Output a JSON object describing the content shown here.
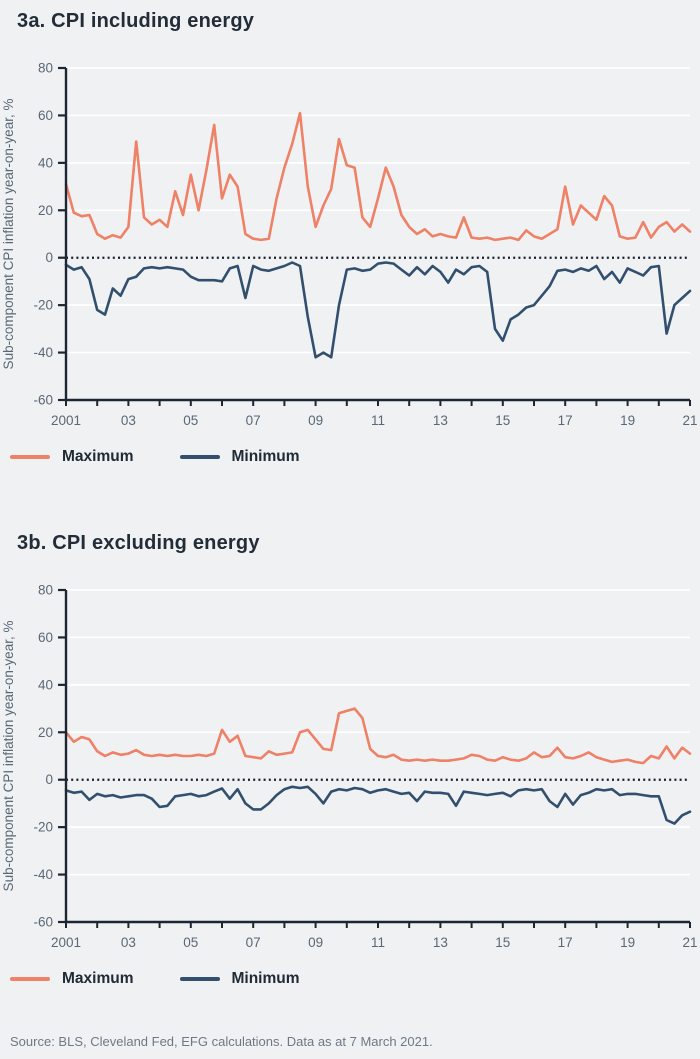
{
  "source": "Source: BLS, Cleveland Fed, EFG calculations. Data as at 7 March 2021.",
  "colors": {
    "maximum": "#ee8166",
    "minimum": "#32506e",
    "background": "#f0f1f3",
    "grid": "#ffffff",
    "axis": "#1c2733",
    "zero_line": "#15202b",
    "tick_label": "#5a6874",
    "title_text": "#232d38",
    "source_text": "#6f7984"
  },
  "chart_data": [
    {
      "type": "line",
      "title": "3a. CPI including energy",
      "ylabel": "Sub-component CPI inflation year-on-year, %",
      "xlim": [
        2001,
        2021
      ],
      "ylim": [
        -60,
        80
      ],
      "yticks": [
        80,
        60,
        40,
        20,
        0,
        -20,
        -40,
        -60
      ],
      "xticks": [
        {
          "v": 2001,
          "label": "2001"
        },
        {
          "v": 2003,
          "label": "03"
        },
        {
          "v": 2005,
          "label": "05"
        },
        {
          "v": 2007,
          "label": "07"
        },
        {
          "v": 2009,
          "label": "09"
        },
        {
          "v": 2011,
          "label": "11"
        },
        {
          "v": 2013,
          "label": "13"
        },
        {
          "v": 2015,
          "label": "15"
        },
        {
          "v": 2017,
          "label": "17"
        },
        {
          "v": 2019,
          "label": "19"
        },
        {
          "v": 2021,
          "label": "21"
        }
      ],
      "x_start": 2001,
      "x_step": 0.25,
      "grid": "horizontal-white",
      "zero_line_dotted": true,
      "legend_position": "below",
      "series": [
        {
          "name": "Maximum",
          "color": "#ee8166",
          "values": [
            31,
            19,
            17.5,
            18,
            10,
            8,
            9.5,
            8.5,
            13,
            49,
            17,
            14,
            16,
            13,
            28,
            18,
            35,
            20,
            37,
            56,
            25,
            35,
            30,
            10,
            8,
            7.5,
            8,
            25,
            38,
            48,
            61,
            30,
            13,
            22,
            29,
            50,
            39,
            38,
            17,
            13,
            25,
            38,
            30,
            18,
            13,
            10,
            12,
            9,
            10,
            9,
            8.5,
            17,
            8.5,
            8,
            8.5,
            7.5,
            8,
            8.5,
            7.5,
            11.5,
            9,
            8,
            10,
            12,
            30,
            14,
            22,
            19,
            16,
            26,
            22,
            9,
            8,
            8.5,
            15,
            8.5,
            13,
            15,
            11,
            14,
            11
          ]
        },
        {
          "name": "Minimum",
          "color": "#32506e",
          "values": [
            -3,
            -5,
            -4,
            -9,
            -22,
            -24,
            -13,
            -16,
            -9,
            -8,
            -4.5,
            -4,
            -4.5,
            -4,
            -4.5,
            -5,
            -8,
            -9.5,
            -9.5,
            -9.5,
            -10,
            -4.5,
            -3.5,
            -17,
            -3.5,
            -5,
            -5.5,
            -4.5,
            -3.5,
            -2,
            -3.5,
            -25,
            -42,
            -40,
            -42,
            -20,
            -5,
            -4.5,
            -5.5,
            -5,
            -2.5,
            -2,
            -2.5,
            -5,
            -7.5,
            -4,
            -7,
            -3.5,
            -6,
            -10.5,
            -5,
            -7,
            -4,
            -3.5,
            -6,
            -30,
            -35,
            -26,
            -24,
            -21,
            -20,
            -16,
            -12,
            -5.5,
            -5,
            -6,
            -4.5,
            -5.5,
            -3.5,
            -9,
            -6,
            -10.5,
            -4.5,
            -6,
            -7.5,
            -4,
            -3.5,
            -32,
            -20,
            -17,
            -14
          ]
        }
      ]
    },
    {
      "type": "line",
      "title": "3b. CPI excluding energy",
      "ylabel": "Sub-component CPI inflation year-on-year, %",
      "xlim": [
        2001,
        2021
      ],
      "ylim": [
        -60,
        80
      ],
      "yticks": [
        80,
        60,
        40,
        20,
        0,
        -20,
        -40,
        -60
      ],
      "xticks": [
        {
          "v": 2001,
          "label": "2001"
        },
        {
          "v": 2003,
          "label": "03"
        },
        {
          "v": 2005,
          "label": "05"
        },
        {
          "v": 2007,
          "label": "07"
        },
        {
          "v": 2009,
          "label": "09"
        },
        {
          "v": 2011,
          "label": "11"
        },
        {
          "v": 2013,
          "label": "13"
        },
        {
          "v": 2015,
          "label": "15"
        },
        {
          "v": 2017,
          "label": "17"
        },
        {
          "v": 2019,
          "label": "19"
        },
        {
          "v": 2021,
          "label": "21"
        }
      ],
      "x_start": 2001,
      "x_step": 0.25,
      "grid": "horizontal-white",
      "zero_line_dotted": true,
      "legend_position": "below",
      "series": [
        {
          "name": "Maximum",
          "color": "#ee8166",
          "values": [
            20,
            16,
            18,
            17,
            12,
            10,
            11.5,
            10.5,
            11,
            12.5,
            10.5,
            10,
            10.5,
            10,
            10.5,
            10,
            10,
            10.5,
            10,
            11,
            21,
            16,
            18.5,
            10,
            9.5,
            9,
            12,
            10.5,
            11,
            11.5,
            20,
            21,
            17,
            13,
            12.5,
            28,
            29,
            30,
            26,
            13,
            10,
            9.5,
            10.5,
            8.5,
            8,
            8.5,
            8,
            8.5,
            8,
            8,
            8.5,
            9,
            10.5,
            10,
            8.5,
            8,
            9.5,
            8.5,
            8,
            9,
            11.5,
            9.5,
            10,
            13.5,
            9.5,
            9,
            10,
            11.5,
            9.5,
            8.5,
            7.5,
            8,
            8.5,
            7.5,
            7,
            10,
            9,
            14,
            9,
            13.5,
            11
          ]
        },
        {
          "name": "Minimum",
          "color": "#32506e",
          "values": [
            -4.5,
            -5.5,
            -5,
            -8.5,
            -6,
            -7,
            -6.5,
            -7.5,
            -7,
            -6.5,
            -6.5,
            -8,
            -11.5,
            -11,
            -7,
            -6.5,
            -6,
            -7,
            -6.5,
            -5,
            -3.7,
            -8,
            -4,
            -10,
            -12.5,
            -12.5,
            -10,
            -6.5,
            -4,
            -3,
            -3.5,
            -3,
            -6,
            -10,
            -5,
            -4,
            -4.5,
            -3.5,
            -4,
            -5.5,
            -4.5,
            -4,
            -5,
            -6,
            -5.5,
            -9,
            -5,
            -5.5,
            -5.5,
            -6,
            -11,
            -5,
            -5.5,
            -6,
            -6.5,
            -6,
            -5.5,
            -7,
            -4.5,
            -4,
            -4.5,
            -4,
            -9,
            -11.5,
            -6,
            -10.5,
            -6.5,
            -5.5,
            -4,
            -4.5,
            -4,
            -6.5,
            -6,
            -6,
            -6.5,
            -7,
            -7,
            -17,
            -18.5,
            -15,
            -13.5
          ]
        }
      ]
    }
  ]
}
